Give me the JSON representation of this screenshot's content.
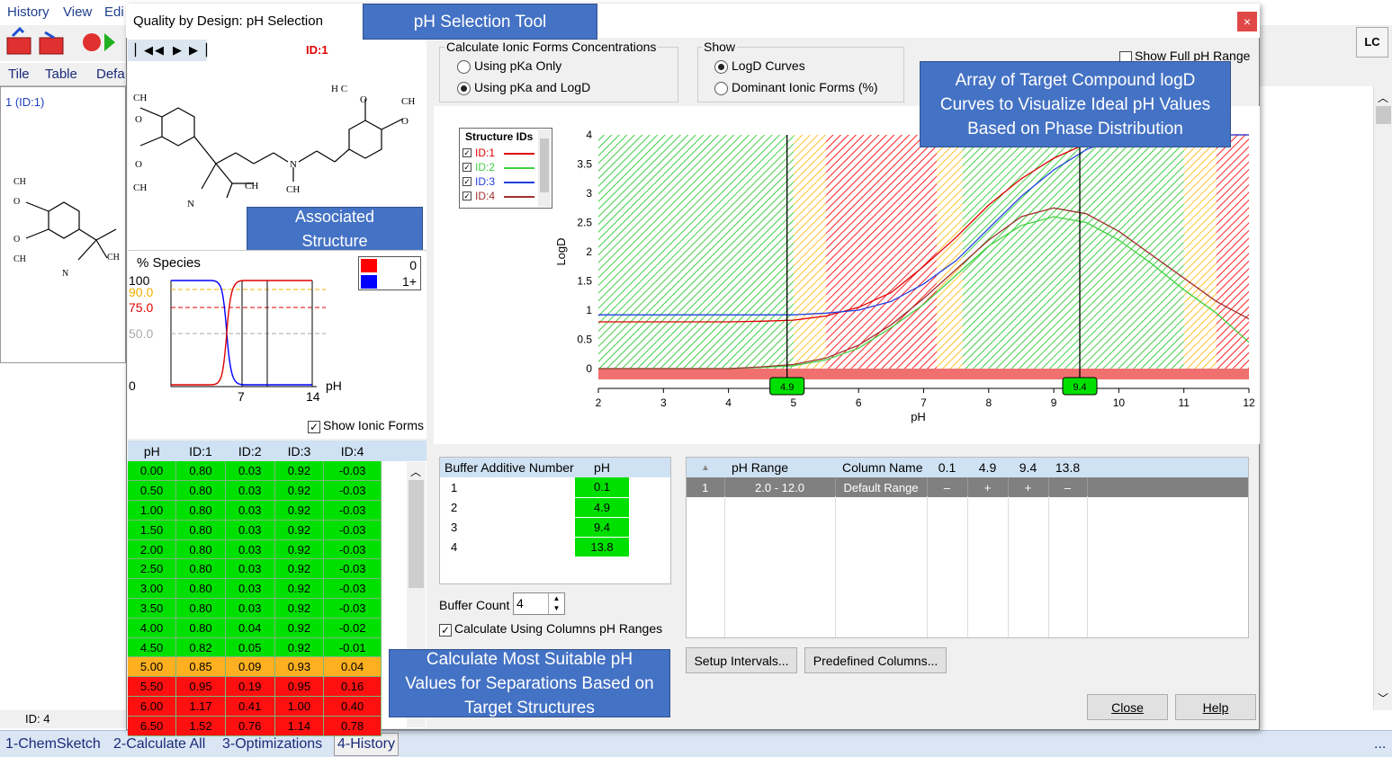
{
  "app": {
    "menu": [
      "History",
      "View",
      "Edi"
    ],
    "tabs": [
      "Tile",
      "Table",
      "Defa"
    ],
    "left_item": "1 (ID:1)",
    "status": "ID: 4",
    "lc_button": "LC",
    "bottom_tabs": [
      "1-ChemSketch",
      "2-Calculate All",
      "3-Optimizations",
      "4-History"
    ],
    "bottom_more": "..."
  },
  "dialog": {
    "title": "Quality by Design: pH Selection",
    "id_label": "ID:1",
    "close_x": "×"
  },
  "callouts": {
    "tool": "pH Selection Tool",
    "structure": "Associated Structure",
    "logd": "Array of Target Compound logD Curves to Visualize Ideal pH Values Based on Phase Distribution",
    "calc": "Calculate Most Suitable pH Values for Separations Based on Target Structures"
  },
  "species": {
    "title": "% Species",
    "y_ticks": [
      "100",
      "90.0",
      "75.0",
      "50.0",
      "0"
    ],
    "x_ticks": [
      "7",
      "14"
    ],
    "x_unit": "pH",
    "legend": [
      {
        "label": "0",
        "color": "#ff0000"
      },
      {
        "label": "1+",
        "color": "#0000ff"
      }
    ],
    "show_ionic_label": "Show Ionic Forms",
    "show_ionic_checked": true
  },
  "calc_group": {
    "title": "Calculate Ionic Forms Concentrations",
    "opt1": "Using pKa Only",
    "opt2": "Using pKa and LogD",
    "selected": 2
  },
  "show_group": {
    "title": "Show",
    "opt1": "LogD Curves",
    "opt2": "Dominant Ionic Forms (%)",
    "selected": 1
  },
  "full_range_label": "Show Full pH Range",
  "structure_ids": {
    "title": "Structure IDs",
    "items": [
      {
        "label": "ID:1",
        "color": "#e00000"
      },
      {
        "label": "ID:2",
        "color": "#40d040"
      },
      {
        "label": "ID:3",
        "color": "#2040e0"
      },
      {
        "label": "ID:4",
        "color": "#a03030"
      }
    ]
  },
  "chart_data": {
    "type": "line",
    "xlabel": "pH",
    "ylabel": "LogD",
    "xlim": [
      2,
      12
    ],
    "ylim": [
      0,
      4
    ],
    "x_ticks": [
      "2",
      "3",
      "4",
      "5",
      "6",
      "7",
      "8",
      "9",
      "10",
      "11",
      "12"
    ],
    "y_ticks": [
      "0",
      "0.5",
      "1",
      "1.5",
      "2",
      "2.5",
      "3",
      "3.5",
      "4"
    ],
    "markers": [
      4.9,
      9.4
    ],
    "marker_labels": [
      "4.9",
      "9.4"
    ],
    "x": [
      2,
      3,
      4,
      4.5,
      5,
      5.5,
      6,
      6.5,
      7,
      7.5,
      8,
      8.5,
      9,
      9.5,
      10,
      10.5,
      11,
      11.5,
      12
    ],
    "series": [
      {
        "name": "ID:1",
        "color": "#e00000",
        "values": [
          0.8,
          0.8,
          0.8,
          0.81,
          0.83,
          0.9,
          1.05,
          1.3,
          1.75,
          2.25,
          2.8,
          3.25,
          3.6,
          3.85,
          4.0,
          4.0,
          4.0,
          4.0,
          4.0
        ]
      },
      {
        "name": "ID:2",
        "color": "#40d040",
        "values": [
          0.0,
          0.0,
          0.0,
          0.02,
          0.05,
          0.15,
          0.35,
          0.7,
          1.1,
          1.6,
          2.1,
          2.45,
          2.6,
          2.5,
          2.2,
          1.8,
          1.35,
          0.95,
          0.45
        ]
      },
      {
        "name": "ID:3",
        "color": "#2040e0",
        "values": [
          0.92,
          0.92,
          0.92,
          0.92,
          0.92,
          0.95,
          1.0,
          1.15,
          1.45,
          1.85,
          2.4,
          2.95,
          3.4,
          3.75,
          3.95,
          4.05,
          4.05,
          4.05,
          4.05
        ]
      },
      {
        "name": "ID:4",
        "color": "#a03030",
        "values": [
          0.0,
          0.0,
          0.0,
          0.03,
          0.07,
          0.18,
          0.4,
          0.75,
          1.2,
          1.7,
          2.2,
          2.6,
          2.75,
          2.65,
          2.35,
          1.95,
          1.55,
          1.15,
          0.85
        ]
      }
    ],
    "bands": [
      {
        "from": 2,
        "to": 5.0,
        "color": "green"
      },
      {
        "from": 5.0,
        "to": 5.5,
        "color": "yellow"
      },
      {
        "from": 5.5,
        "to": 7.2,
        "color": "red"
      },
      {
        "from": 7.2,
        "to": 7.6,
        "color": "yellow"
      },
      {
        "from": 7.6,
        "to": 11.0,
        "color": "green"
      },
      {
        "from": 11.0,
        "to": 11.5,
        "color": "yellow"
      },
      {
        "from": 11.5,
        "to": 12,
        "color": "red"
      }
    ]
  },
  "ph_table": {
    "headers": [
      "pH",
      "ID:1",
      "ID:2",
      "ID:3",
      "ID:4"
    ],
    "rows": [
      {
        "c": [
          "0.00",
          "0.80",
          "0.03",
          "0.92",
          "-0.03"
        ],
        "color": "#00e000"
      },
      {
        "c": [
          "0.50",
          "0.80",
          "0.03",
          "0.92",
          "-0.03"
        ],
        "color": "#00e000"
      },
      {
        "c": [
          "1.00",
          "0.80",
          "0.03",
          "0.92",
          "-0.03"
        ],
        "color": "#00e000"
      },
      {
        "c": [
          "1.50",
          "0.80",
          "0.03",
          "0.92",
          "-0.03"
        ],
        "color": "#00e000"
      },
      {
        "c": [
          "2.00",
          "0.80",
          "0.03",
          "0.92",
          "-0.03"
        ],
        "color": "#00e000"
      },
      {
        "c": [
          "2.50",
          "0.80",
          "0.03",
          "0.92",
          "-0.03"
        ],
        "color": "#00e000"
      },
      {
        "c": [
          "3.00",
          "0.80",
          "0.03",
          "0.92",
          "-0.03"
        ],
        "color": "#00e000"
      },
      {
        "c": [
          "3.50",
          "0.80",
          "0.03",
          "0.92",
          "-0.03"
        ],
        "color": "#00e000"
      },
      {
        "c": [
          "4.00",
          "0.80",
          "0.04",
          "0.92",
          "-0.02"
        ],
        "color": "#00e000"
      },
      {
        "c": [
          "4.50",
          "0.82",
          "0.05",
          "0.92",
          "-0.01"
        ],
        "color": "#00e000"
      },
      {
        "c": [
          "5.00",
          "0.85",
          "0.09",
          "0.93",
          "0.04"
        ],
        "color": "#ffb020"
      },
      {
        "c": [
          "5.50",
          "0.95",
          "0.19",
          "0.95",
          "0.16"
        ],
        "color": "#ff1010"
      },
      {
        "c": [
          "6.00",
          "1.17",
          "0.41",
          "1.00",
          "0.40"
        ],
        "color": "#ff1010"
      },
      {
        "c": [
          "6.50",
          "1.52",
          "0.76",
          "1.14",
          "0.78"
        ],
        "color": "#ff1010"
      }
    ]
  },
  "buffer_table": {
    "headers": [
      "Buffer Additive Number",
      "pH"
    ],
    "rows": [
      [
        "1",
        "0.1"
      ],
      [
        "2",
        "4.9"
      ],
      [
        "3",
        "9.4"
      ],
      [
        "4",
        "13.8"
      ]
    ]
  },
  "buffer_count_label": "Buffer Count",
  "buffer_count": "4",
  "calc_columns_label": "Calculate Using Columns pH Ranges",
  "range_table": {
    "headers": [
      "▲",
      "pH Range",
      "Column Name",
      "0.1",
      "4.9",
      "9.4",
      "13.8"
    ],
    "rows": [
      [
        "1",
        "2.0 - 12.0",
        "Default Range",
        "–",
        "+",
        "+",
        "–"
      ]
    ]
  },
  "buttons": {
    "setup": "Setup Intervals...",
    "predef": "Predefined Columns...",
    "close": "Close",
    "help": "Help"
  }
}
